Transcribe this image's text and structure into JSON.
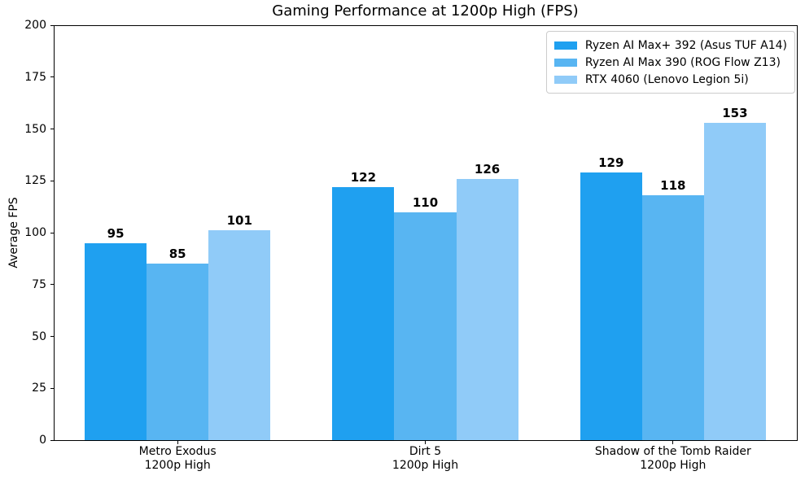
{
  "chart_data": {
    "type": "bar",
    "title": "Gaming Performance at 1200p High (FPS)",
    "xlabel": "",
    "ylabel": "Average FPS",
    "ylim": [
      0,
      200
    ],
    "yticks": [
      0,
      25,
      50,
      75,
      100,
      125,
      150,
      175,
      200
    ],
    "grid": false,
    "legend_position": "upper right",
    "bar_value_labels_shown": true,
    "categories": [
      "Metro Exodus\n1200p High",
      "Dirt 5\n1200p High",
      "Shadow of the Tomb Raider\n1200p High"
    ],
    "series": [
      {
        "name": "Ryzen AI Max+ 392 (Asus TUF A14)",
        "color": "#1FA0F0",
        "values": [
          95,
          122,
          129
        ]
      },
      {
        "name": "Ryzen AI Max 390 (ROG Flow Z13)",
        "color": "#58B5F2",
        "values": [
          85,
          110,
          118
        ]
      },
      {
        "name": "RTX 4060 (Lenovo Legion 5i)",
        "color": "#90CBF8",
        "values": [
          101,
          126,
          153
        ]
      }
    ]
  }
}
